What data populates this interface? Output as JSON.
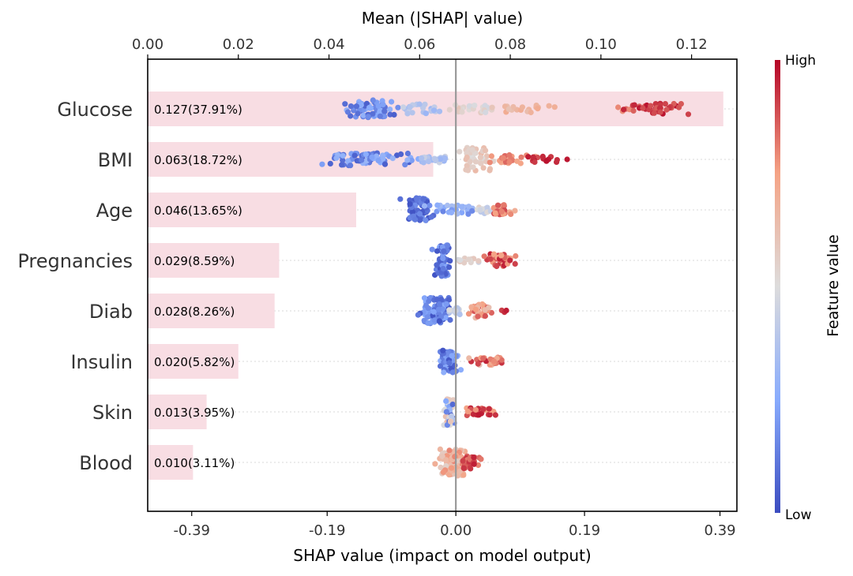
{
  "chart_data": {
    "type": "bar+beeswarm",
    "title": "",
    "top_axis": {
      "label": "Mean (|SHAP| value)",
      "range": [
        0.0,
        0.13
      ],
      "ticks": [
        "0.00",
        "0.02",
        "0.04",
        "0.06",
        "0.08",
        "0.10",
        "0.12"
      ],
      "tick_values": [
        0.0,
        0.02,
        0.04,
        0.06,
        0.08,
        0.1,
        0.12
      ]
    },
    "bottom_axis": {
      "label": "SHAP value (impact on model output)",
      "range": [
        -0.455,
        0.415
      ],
      "ticks": [
        "-0.39",
        "-0.19",
        "0.00",
        "0.19",
        "0.39"
      ],
      "tick_values": [
        -0.39,
        -0.19,
        0.0,
        0.19,
        0.39
      ]
    },
    "features": [
      {
        "name": "Glucose",
        "mean_abs_shap": 0.127,
        "label": "0.127(37.91%)",
        "clusters": [
          {
            "center": -0.125,
            "spread": 0.045,
            "count": 70,
            "color_lo": 0.05,
            "color_hi": 0.3,
            "height": 22
          },
          {
            "center": -0.06,
            "spread": 0.03,
            "count": 25,
            "color_lo": 0.3,
            "color_hi": 0.45,
            "height": 12
          },
          {
            "center": 0.02,
            "spread": 0.04,
            "count": 25,
            "color_lo": 0.45,
            "color_hi": 0.6,
            "height": 10
          },
          {
            "center": 0.1,
            "spread": 0.04,
            "count": 18,
            "color_lo": 0.6,
            "color_hi": 0.72,
            "height": 10
          },
          {
            "center": 0.25,
            "spread": 0.01,
            "count": 4,
            "color_lo": 0.78,
            "color_hi": 0.85,
            "height": 6
          },
          {
            "center": 0.3,
            "spread": 0.04,
            "count": 40,
            "color_lo": 0.85,
            "color_hi": 0.98,
            "height": 14
          }
        ]
      },
      {
        "name": "BMI",
        "mean_abs_shap": 0.063,
        "label": "0.063(18.72%)",
        "clusters": [
          {
            "center": -0.135,
            "spread": 0.07,
            "count": 70,
            "color_lo": 0.05,
            "color_hi": 0.3,
            "height": 16
          },
          {
            "center": -0.035,
            "spread": 0.03,
            "count": 25,
            "color_lo": 0.3,
            "color_hi": 0.45,
            "height": 8
          },
          {
            "center": 0.03,
            "spread": 0.025,
            "count": 45,
            "color_lo": 0.5,
            "color_hi": 0.65,
            "height": 30
          },
          {
            "center": 0.08,
            "spread": 0.03,
            "count": 25,
            "color_lo": 0.7,
            "color_hi": 0.85,
            "height": 12
          },
          {
            "center": 0.13,
            "spread": 0.025,
            "count": 14,
            "color_lo": 0.88,
            "color_hi": 0.98,
            "height": 8
          },
          {
            "center": 0.165,
            "spread": 0.002,
            "count": 1,
            "color_lo": 0.97,
            "color_hi": 0.97,
            "height": 2
          }
        ]
      },
      {
        "name": "Age",
        "mean_abs_shap": 0.046,
        "label": "0.046(13.65%)",
        "clusters": [
          {
            "center": -0.055,
            "spread": 0.022,
            "count": 70,
            "color_lo": 0.02,
            "color_hi": 0.18,
            "height": 30
          },
          {
            "center": 0.0,
            "spread": 0.035,
            "count": 30,
            "color_lo": 0.15,
            "color_hi": 0.35,
            "height": 12
          },
          {
            "center": 0.04,
            "spread": 0.02,
            "count": 15,
            "color_lo": 0.4,
            "color_hi": 0.55,
            "height": 10
          },
          {
            "center": 0.07,
            "spread": 0.015,
            "count": 30,
            "color_lo": 0.7,
            "color_hi": 0.9,
            "height": 14
          }
        ]
      },
      {
        "name": "Pregnancies",
        "mean_abs_shap": 0.029,
        "label": "0.029(8.59%)",
        "clusters": [
          {
            "center": -0.02,
            "spread": 0.012,
            "count": 60,
            "color_lo": 0.02,
            "color_hi": 0.25,
            "height": 40
          },
          {
            "center": 0.02,
            "spread": 0.02,
            "count": 15,
            "color_lo": 0.45,
            "color_hi": 0.6,
            "height": 6
          },
          {
            "center": 0.065,
            "spread": 0.022,
            "count": 40,
            "color_lo": 0.7,
            "color_hi": 0.97,
            "height": 16
          }
        ]
      },
      {
        "name": "Diab",
        "mean_abs_shap": 0.028,
        "label": "0.028(8.26%)",
        "clusters": [
          {
            "center": -0.03,
            "spread": 0.02,
            "count": 90,
            "color_lo": 0.02,
            "color_hi": 0.28,
            "height": 34
          },
          {
            "center": 0.0,
            "spread": 0.01,
            "count": 15,
            "color_lo": 0.35,
            "color_hi": 0.5,
            "height": 10
          },
          {
            "center": 0.035,
            "spread": 0.015,
            "count": 30,
            "color_lo": 0.62,
            "color_hi": 0.88,
            "height": 18
          },
          {
            "center": 0.07,
            "spread": 0.006,
            "count": 3,
            "color_lo": 0.9,
            "color_hi": 0.97,
            "height": 4
          }
        ]
      },
      {
        "name": "Insulin",
        "mean_abs_shap": 0.02,
        "label": "0.020(5.82%)",
        "clusters": [
          {
            "center": -0.01,
            "spread": 0.015,
            "count": 70,
            "color_lo": 0.02,
            "color_hi": 0.3,
            "height": 28
          },
          {
            "center": 0.05,
            "spread": 0.025,
            "count": 28,
            "color_lo": 0.6,
            "color_hi": 0.97,
            "height": 10
          }
        ]
      },
      {
        "name": "Skin",
        "mean_abs_shap": 0.013,
        "label": "0.013(3.95%)",
        "clusters": [
          {
            "center": -0.01,
            "spread": 0.008,
            "count": 55,
            "color_lo": 0.05,
            "color_hi": 0.65,
            "height": 34
          },
          {
            "center": 0.035,
            "spread": 0.022,
            "count": 35,
            "color_lo": 0.72,
            "color_hi": 0.97,
            "height": 10
          }
        ]
      },
      {
        "name": "Blood",
        "mean_abs_shap": 0.01,
        "label": "0.010(3.11%)",
        "clusters": [
          {
            "center": -0.005,
            "spread": 0.018,
            "count": 100,
            "color_lo": 0.55,
            "color_hi": 0.8,
            "height": 34
          },
          {
            "center": 0.02,
            "spread": 0.012,
            "count": 30,
            "color_lo": 0.8,
            "color_hi": 0.97,
            "height": 16
          }
        ]
      }
    ],
    "colorbar": {
      "label": "Feature value",
      "high": "High",
      "low": "Low",
      "colormap": "coolwarm"
    },
    "colors": {
      "bar_fill": "#f8dde3",
      "zero_line": "#999999",
      "grid": "#cccccc"
    }
  }
}
